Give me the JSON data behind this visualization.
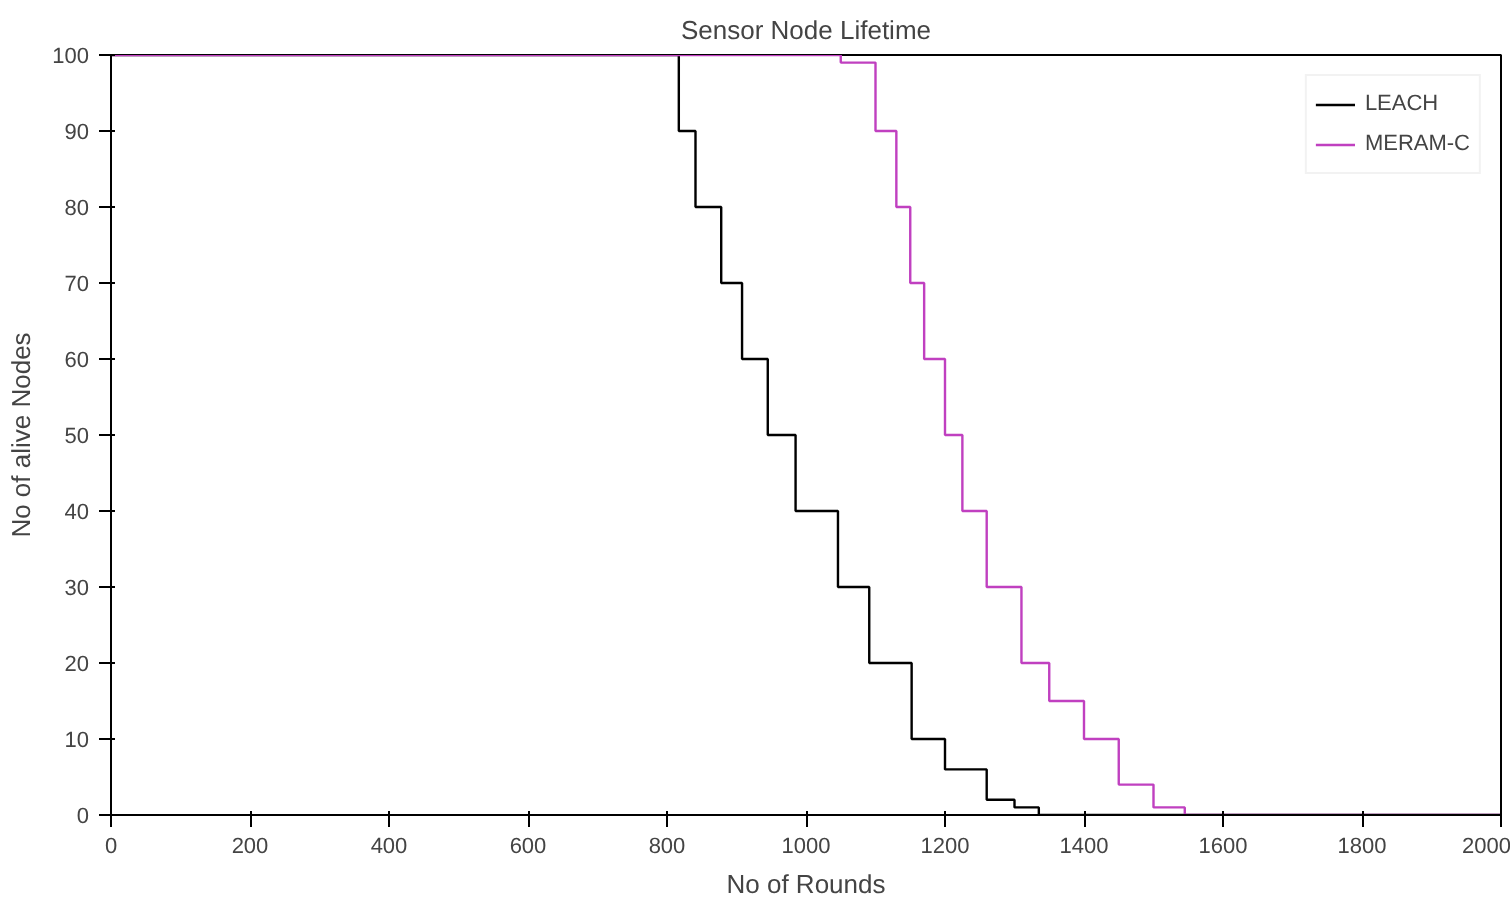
{
  "chart_data": {
    "type": "step",
    "title": "Sensor Node Lifetime",
    "xlabel": "No of Rounds",
    "ylabel": "No of alive Nodes",
    "xlim": [
      0,
      2000
    ],
    "ylim": [
      0,
      100
    ],
    "xticks": [
      0,
      200,
      400,
      600,
      800,
      1000,
      1200,
      1400,
      1600,
      1800,
      2000
    ],
    "yticks": [
      0,
      10,
      20,
      30,
      40,
      50,
      60,
      70,
      80,
      90,
      100
    ],
    "grid": false,
    "legend": "top right",
    "series": [
      {
        "name": "LEACH",
        "color": "#000000",
        "x": [
          0,
          800,
          817,
          841,
          878,
          908,
          945,
          985,
          1046,
          1091,
          1152,
          1200,
          1260,
          1300,
          1335,
          2000
        ],
        "values": [
          100,
          100,
          90,
          80,
          70,
          60,
          50,
          40,
          30,
          20,
          10,
          6,
          2,
          1,
          0,
          0
        ]
      },
      {
        "name": "MERAM-C",
        "color": "#c040c0",
        "x": [
          0,
          1000,
          1050,
          1100,
          1130,
          1150,
          1170,
          1200,
          1225,
          1260,
          1310,
          1350,
          1400,
          1450,
          1500,
          1545,
          2000
        ],
        "values": [
          100,
          100,
          99,
          90,
          80,
          70,
          60,
          50,
          40,
          30,
          20,
          15,
          10,
          4,
          1,
          0,
          0
        ]
      }
    ]
  }
}
